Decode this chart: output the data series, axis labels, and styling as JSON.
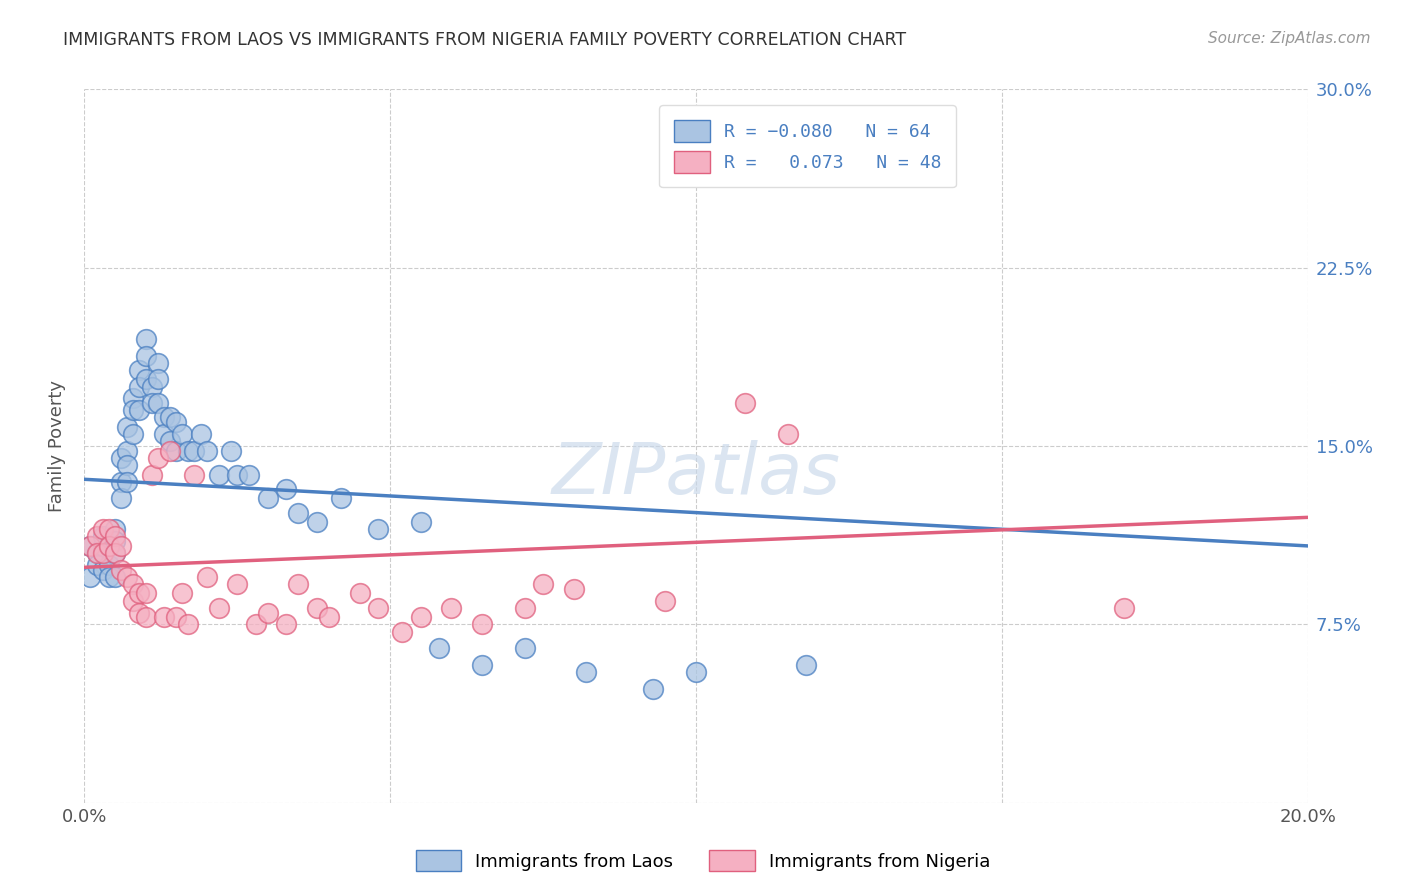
{
  "title": "IMMIGRANTS FROM LAOS VS IMMIGRANTS FROM NIGERIA FAMILY POVERTY CORRELATION CHART",
  "source": "Source: ZipAtlas.com",
  "ylabel": "Family Poverty",
  "xlim": [
    0.0,
    0.2
  ],
  "ylim": [
    0.0,
    0.3
  ],
  "laos_R": -0.08,
  "laos_N": 64,
  "nigeria_R": 0.073,
  "nigeria_N": 48,
  "laos_color": "#aac4e2",
  "nigeria_color": "#f5b0c2",
  "laos_line_color": "#4a7fc1",
  "nigeria_line_color": "#e0607e",
  "background_color": "#ffffff",
  "title_color": "#333333",
  "tick_color": "#4a7fc1",
  "watermark": "ZIPatlas",
  "laos_x": [
    0.001,
    0.001,
    0.002,
    0.002,
    0.003,
    0.003,
    0.003,
    0.004,
    0.004,
    0.004,
    0.005,
    0.005,
    0.005,
    0.005,
    0.006,
    0.006,
    0.006,
    0.007,
    0.007,
    0.007,
    0.007,
    0.008,
    0.008,
    0.008,
    0.009,
    0.009,
    0.009,
    0.01,
    0.01,
    0.01,
    0.011,
    0.011,
    0.012,
    0.012,
    0.012,
    0.013,
    0.013,
    0.014,
    0.014,
    0.015,
    0.015,
    0.016,
    0.017,
    0.018,
    0.019,
    0.02,
    0.022,
    0.024,
    0.025,
    0.027,
    0.03,
    0.033,
    0.035,
    0.038,
    0.042,
    0.048,
    0.055,
    0.058,
    0.065,
    0.072,
    0.082,
    0.093,
    0.1,
    0.118
  ],
  "laos_y": [
    0.095,
    0.108,
    0.105,
    0.1,
    0.098,
    0.108,
    0.112,
    0.108,
    0.1,
    0.095,
    0.115,
    0.11,
    0.105,
    0.095,
    0.145,
    0.135,
    0.128,
    0.158,
    0.148,
    0.142,
    0.135,
    0.17,
    0.165,
    0.155,
    0.182,
    0.175,
    0.165,
    0.195,
    0.188,
    0.178,
    0.175,
    0.168,
    0.185,
    0.178,
    0.168,
    0.162,
    0.155,
    0.162,
    0.152,
    0.16,
    0.148,
    0.155,
    0.148,
    0.148,
    0.155,
    0.148,
    0.138,
    0.148,
    0.138,
    0.138,
    0.128,
    0.132,
    0.122,
    0.118,
    0.128,
    0.115,
    0.118,
    0.065,
    0.058,
    0.065,
    0.055,
    0.048,
    0.055,
    0.058
  ],
  "nigeria_x": [
    0.001,
    0.002,
    0.002,
    0.003,
    0.003,
    0.004,
    0.004,
    0.005,
    0.005,
    0.006,
    0.006,
    0.007,
    0.008,
    0.008,
    0.009,
    0.009,
    0.01,
    0.01,
    0.011,
    0.012,
    0.013,
    0.014,
    0.015,
    0.016,
    0.017,
    0.018,
    0.02,
    0.022,
    0.025,
    0.028,
    0.03,
    0.033,
    0.035,
    0.038,
    0.04,
    0.045,
    0.048,
    0.052,
    0.055,
    0.06,
    0.065,
    0.072,
    0.075,
    0.08,
    0.095,
    0.108,
    0.115,
    0.17
  ],
  "nigeria_y": [
    0.108,
    0.112,
    0.105,
    0.115,
    0.105,
    0.115,
    0.108,
    0.112,
    0.105,
    0.108,
    0.098,
    0.095,
    0.092,
    0.085,
    0.088,
    0.08,
    0.088,
    0.078,
    0.138,
    0.145,
    0.078,
    0.148,
    0.078,
    0.088,
    0.075,
    0.138,
    0.095,
    0.082,
    0.092,
    0.075,
    0.08,
    0.075,
    0.092,
    0.082,
    0.078,
    0.088,
    0.082,
    0.072,
    0.078,
    0.082,
    0.075,
    0.082,
    0.092,
    0.09,
    0.085,
    0.168,
    0.155,
    0.082
  ],
  "laos_line_x0": 0.0,
  "laos_line_y0": 0.136,
  "laos_line_x1": 0.2,
  "laos_line_y1": 0.108,
  "nigeria_line_x0": 0.0,
  "nigeria_line_y0": 0.099,
  "nigeria_line_x1": 0.2,
  "nigeria_line_y1": 0.12
}
